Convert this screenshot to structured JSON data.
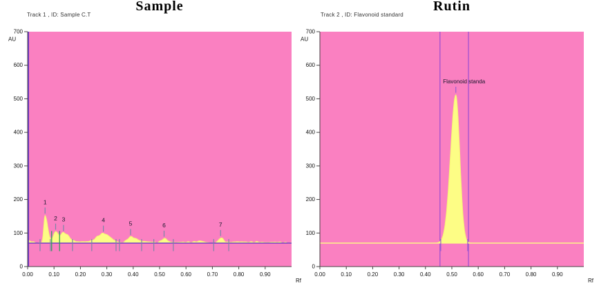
{
  "colors": {
    "plot_bg": "#fa80c1",
    "peak_fill": "#fdfd85",
    "trace": "#f6f275",
    "baseline": "#6633cc",
    "marker": "#7a86a8",
    "green_marker": "#2e9e5b",
    "region_line": "#a050d0",
    "axis": "#444444",
    "text": "#111111",
    "peak_label_text": "#15152a"
  },
  "chart_data": [
    {
      "type": "area",
      "title": "Sample",
      "track_label": "Track  1 , ID: Sample C.T",
      "xlabel": "Rf",
      "ylabel": "AU",
      "xlim": [
        0,
        1.0
      ],
      "ylim": [
        0,
        700
      ],
      "x_tick_values": [
        0,
        0.1,
        0.2,
        0.3,
        0.4,
        0.5,
        0.6,
        0.7,
        0.8,
        0.9
      ],
      "x_tick_labels": [
        "0.00",
        "0.10",
        "0.20",
        "0.30",
        "0.40",
        "0.50",
        "0.60",
        "0.70",
        "0.80",
        "0.90"
      ],
      "y_tick_values": [
        0,
        100,
        200,
        300,
        400,
        500,
        600,
        700
      ],
      "grid": false,
      "legend": "none",
      "baseline_au": 70,
      "baseline_style": "purple",
      "edge_line_rf": 0.0015,
      "noise": true,
      "peaks": [
        {
          "label": "1",
          "rf": 0.066,
          "apex_au": 152,
          "wl": 0.005,
          "wr": 0.01,
          "bounds": [
            0.047,
            0.086
          ]
        },
        {
          "label": "2",
          "rf": 0.106,
          "apex_au": 104,
          "wl": 0.009,
          "wr": 0.011,
          "bounds": []
        },
        {
          "label": "3",
          "rf": 0.136,
          "apex_au": 100,
          "wl": 0.01,
          "wr": 0.02,
          "bounds": [
            0.17
          ]
        },
        {
          "label": "4",
          "rf": 0.287,
          "apex_au": 98,
          "wl": 0.024,
          "wr": 0.027,
          "bounds": [
            0.243,
            0.335
          ]
        },
        {
          "label": "5",
          "rf": 0.39,
          "apex_au": 88,
          "wl": 0.013,
          "wr": 0.022,
          "bounds": [
            0.348,
            0.432
          ]
        },
        {
          "label": "6",
          "rf": 0.517,
          "apex_au": 83,
          "wl": 0.01,
          "wr": 0.013,
          "bounds": [
            0.478,
            0.552
          ]
        },
        {
          "label": "7",
          "rf": 0.731,
          "apex_au": 85,
          "wl": 0.008,
          "wr": 0.011,
          "bounds": [
            0.705,
            0.762
          ]
        }
      ],
      "green_markers_rf": [
        0.091,
        0.121
      ],
      "minor_bumps": [
        {
          "rf": 0.0,
          "h": 8,
          "w": 0.015
        },
        {
          "rf": 0.21,
          "h": 4,
          "w": 0.04
        },
        {
          "rf": 0.45,
          "h": 4,
          "w": 0.03
        },
        {
          "rf": 0.6,
          "h": 3,
          "w": 0.04
        },
        {
          "rf": 0.655,
          "h": 5,
          "w": 0.015
        },
        {
          "rf": 0.8,
          "h": 4,
          "w": 0.035
        },
        {
          "rf": 0.87,
          "h": 3,
          "w": 0.02
        },
        {
          "rf": 0.94,
          "h": 3,
          "w": 0.025
        }
      ]
    },
    {
      "type": "area",
      "title": "Rutin",
      "track_label": "Track  2 , ID: Flavonoid standard",
      "xlabel": "Rf",
      "ylabel": "AU",
      "xlim": [
        0,
        1.0
      ],
      "ylim": [
        0,
        700
      ],
      "x_tick_values": [
        0,
        0.1,
        0.2,
        0.3,
        0.4,
        0.5,
        0.6,
        0.7,
        0.8,
        0.9
      ],
      "x_tick_labels": [
        "0.00",
        "0.10",
        "0.20",
        "0.30",
        "0.40",
        "0.50",
        "0.60",
        "0.70",
        "0.80",
        "0.90"
      ],
      "y_tick_values": [
        0,
        100,
        200,
        300,
        400,
        500,
        600,
        700
      ],
      "grid": false,
      "legend": "none",
      "baseline_au": 70,
      "baseline_style": "yellow",
      "noise": false,
      "marker_color": "#9a5fd0",
      "region_lines_rf": [
        0.455,
        0.563
      ],
      "peaks": [
        {
          "label": "Flavonoid standa",
          "rf": 0.515,
          "apex_au": 512,
          "wl": 0.02,
          "wr": 0.015,
          "bounds": [
            0.458,
            0.56
          ],
          "label_dx": 12,
          "label_size": 8
        }
      ],
      "minor_bumps": []
    }
  ]
}
